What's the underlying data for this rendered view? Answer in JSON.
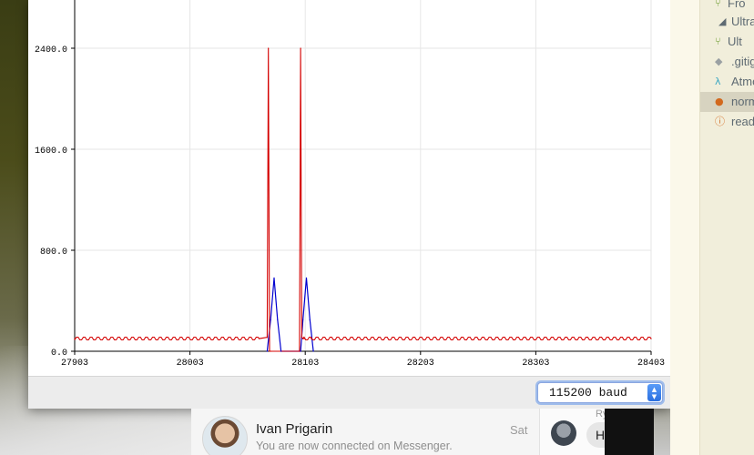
{
  "plotter": {
    "baud": "115200 baud",
    "colors": {
      "red_series": "#d40000",
      "blue_series": "#0000d0",
      "grid": "#e6e6e6"
    }
  },
  "chart_data": {
    "type": "line",
    "title": "",
    "xlabel": "",
    "ylabel": "",
    "x_ticks": [
      "27903",
      "28003",
      "28103",
      "28203",
      "28303",
      "28403"
    ],
    "y_ticks": [
      "0.0",
      "800.0",
      "1600.0",
      "2400.0"
    ],
    "xlim": [
      27903,
      28403
    ],
    "ylim": [
      0,
      2400
    ],
    "grid": true,
    "series": [
      {
        "color": "#d40000",
        "x": [
          27903,
          28063,
          28070,
          28071,
          28072,
          28073,
          28098,
          28099,
          28100,
          28101,
          28102,
          28108,
          28403
        ],
        "y": [
          100,
          100,
          110,
          2400,
          0,
          0,
          0,
          2400,
          110,
          100,
          100,
          100,
          100
        ]
      },
      {
        "color": "#0000d0",
        "x": [
          28070,
          28073,
          28076,
          28079,
          28082,
          28099,
          28101,
          28104,
          28107,
          28110
        ],
        "y": [
          0,
          250,
          580,
          250,
          0,
          0,
          250,
          580,
          250,
          0
        ]
      }
    ]
  },
  "file_tree": {
    "items": [
      {
        "label": "Fro",
        "icon": "git-branch-icon",
        "color": "#6a9a2c"
      },
      {
        "label": "Ultra",
        "icon": "disclosure-triangle-icon",
        "color": "#5e6a72"
      },
      {
        "label": "Ult",
        "icon": "git-branch-icon",
        "color": "#6a9a2c"
      },
      {
        "label": ".gitig",
        "icon": "git-diamond-icon",
        "color": "#9aa0a3"
      },
      {
        "label": "Atmo",
        "icon": "lambda-icon",
        "color": "#3aa7c2"
      },
      {
        "label": "norm",
        "icon": "python-icon",
        "color": "#d2691e",
        "selected": true
      },
      {
        "label": "read",
        "icon": "info-icon",
        "color": "#d2691e"
      }
    ]
  },
  "messenger": {
    "contact_name": "Ivan Prigarin",
    "contact_message": "You are now connected on Messenger.",
    "contact_day": "Sat",
    "chat_sender": "Ry",
    "chat_text": "Ha"
  }
}
